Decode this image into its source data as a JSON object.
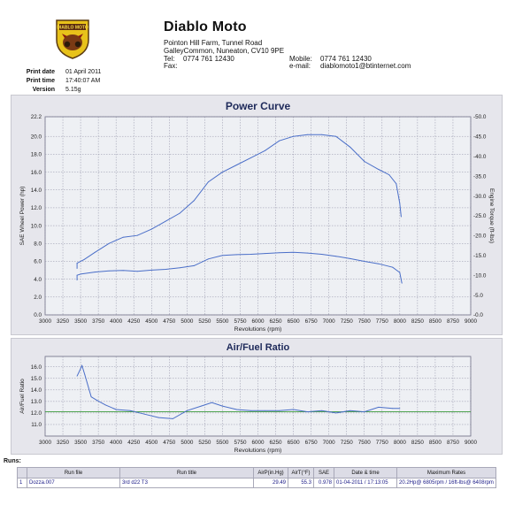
{
  "header": {
    "logo_text": "DIABLO MOTO",
    "company": "Diablo Moto",
    "address_line1": "Pointon Hill Farm, Tunnel Road",
    "address_line2": "GalleyCommon, Nuneaton, CV10 9PE",
    "tel_label": "Tel:",
    "tel": "0774 761 12430",
    "fax_label": "Fax:",
    "mobile_label": "Mobile:",
    "mobile": "0774 761 12430",
    "email_label": "e-mail:",
    "email": "diablomoto1@btinternet.com"
  },
  "meta": {
    "print_date_label": "Print date",
    "print_date": "01 April 2011",
    "print_time_label": "Print time",
    "print_time": "17:40:07 AM",
    "version_label": "Version",
    "version": "5.15g"
  },
  "colors": {
    "panel_bg": "#e6e6ec",
    "grid": "#8e8ea4",
    "curve": "#4a6ec8",
    "afr_ref": "#3a9a3a",
    "title": "#1e2a5a"
  },
  "chart_data": [
    {
      "type": "line",
      "title": "Power Curve",
      "xlabel": "Revolutions (rpm)",
      "ylabel": "SAE Wheel Power (hp)",
      "y2label": "Engine Torque (ft-lbs)",
      "xlim": [
        3000,
        9000
      ],
      "ylim": [
        0,
        22.2
      ],
      "y2lim": [
        0,
        50
      ],
      "x_ticks": [
        3000,
        3250,
        3500,
        3750,
        4000,
        4250,
        4500,
        4750,
        5000,
        5250,
        5500,
        5750,
        6000,
        6250,
        6500,
        6750,
        7000,
        7250,
        7500,
        7750,
        8000,
        8250,
        8500,
        8750,
        9000
      ],
      "y_ticks": [
        0.0,
        2.0,
        4.0,
        6.0,
        8.0,
        10.0,
        12.0,
        14.0,
        16.0,
        18.0,
        20.0,
        22.2
      ],
      "y_tick_labels": [
        "0.0",
        "2.0",
        "4.0",
        "6.0",
        "8.0",
        "10.0",
        "12.0",
        "14.0",
        "16.0",
        "18.0",
        "20.0",
        "22.2"
      ],
      "y2_ticks": [
        0,
        5,
        10,
        15,
        20,
        25,
        30,
        35,
        40,
        45,
        50
      ],
      "y2_tick_labels": [
        "0.0",
        "5.0",
        "10.0",
        "15.0",
        "20.0",
        "25.0",
        "30.0",
        "35.0",
        "40.0",
        "45.0",
        "50.0"
      ],
      "grid": true,
      "series": [
        {
          "axis": "left",
          "x": [
            3450,
            3450,
            3550,
            3700,
            3900,
            4100,
            4300,
            4500,
            4700,
            4900,
            5100,
            5300,
            5500,
            5700,
            5900,
            6100,
            6300,
            6500,
            6700,
            6900,
            7100,
            7300,
            7500,
            7700,
            7850,
            7950,
            8000,
            8020
          ],
          "y": [
            5.2,
            5.8,
            6.2,
            7.0,
            8.0,
            8.7,
            8.9,
            9.6,
            10.5,
            11.4,
            12.8,
            14.9,
            16.0,
            16.8,
            17.6,
            18.4,
            19.5,
            20.0,
            20.2,
            20.2,
            20.0,
            18.8,
            17.2,
            16.3,
            15.7,
            14.7,
            12.5,
            11.0
          ]
        },
        {
          "axis": "right",
          "x": [
            3450,
            3450,
            3500,
            3700,
            3900,
            4100,
            4300,
            4500,
            4700,
            4900,
            5100,
            5300,
            5500,
            5700,
            5900,
            6100,
            6300,
            6500,
            6700,
            6900,
            7100,
            7300,
            7500,
            7700,
            7900,
            8000,
            8030
          ],
          "y": [
            8.8,
            10.0,
            10.3,
            10.8,
            11.1,
            11.2,
            11.0,
            11.3,
            11.5,
            11.9,
            12.4,
            14.1,
            15.0,
            15.2,
            15.3,
            15.5,
            15.7,
            15.8,
            15.6,
            15.3,
            14.8,
            14.2,
            13.5,
            12.9,
            12.0,
            10.7,
            8.0
          ]
        }
      ]
    },
    {
      "type": "line",
      "title": "Air/Fuel Ratio",
      "xlabel": "Revolutions (rpm)",
      "ylabel": "Air/Fuel Ratio",
      "xlim": [
        3000,
        9000
      ],
      "ylim": [
        10.0,
        16.9
      ],
      "x_ticks": [
        3000,
        3250,
        3500,
        3750,
        4000,
        4250,
        4500,
        4750,
        5000,
        5250,
        5500,
        5750,
        6000,
        6250,
        6500,
        6750,
        7000,
        7250,
        7500,
        7750,
        8000,
        8250,
        8500,
        8750,
        9000
      ],
      "y_ticks": [
        11.0,
        12.0,
        13.0,
        14.0,
        15.0,
        16.0
      ],
      "y_tick_labels": [
        "11.0",
        "12.0",
        "13.0",
        "14.0",
        "15.0",
        "16.0"
      ],
      "reference_y": 12.1,
      "grid": true,
      "series": [
        {
          "x": [
            3450,
            3520,
            3560,
            3650,
            3730,
            3850,
            4000,
            4200,
            4400,
            4600,
            4800,
            5000,
            5200,
            5350,
            5500,
            5700,
            5900,
            6100,
            6300,
            6500,
            6700,
            6900,
            7100,
            7300,
            7500,
            7700,
            7900,
            8000
          ],
          "y": [
            15.2,
            16.1,
            15.3,
            13.4,
            13.1,
            12.7,
            12.3,
            12.2,
            11.9,
            11.6,
            11.5,
            12.2,
            12.6,
            12.9,
            12.6,
            12.3,
            12.2,
            12.2,
            12.2,
            12.3,
            12.1,
            12.2,
            12.0,
            12.2,
            12.1,
            12.5,
            12.4,
            12.4
          ]
        }
      ]
    }
  ],
  "runs": {
    "title": "Runs:",
    "headers": [
      "",
      "Run file",
      "Run title",
      "AirP(in.Hg)",
      "AirT(°F)",
      "SAE",
      "Date & time",
      "Maximum Rates"
    ],
    "rows": [
      [
        "1",
        "Dozza.007",
        "3rd d22 T3",
        "29.49",
        "55.3",
        "0.978",
        "01-04-2011 / 17:13:05",
        "20.2Hp@ 6805rpm / 16ft-lbs@ 6408rpm"
      ]
    ]
  }
}
